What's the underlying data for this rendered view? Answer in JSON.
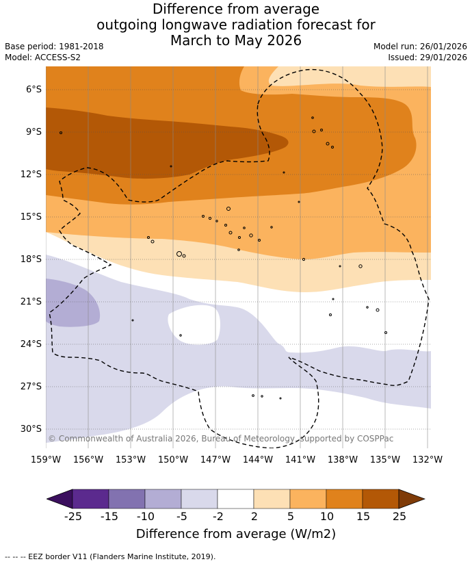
{
  "header": {
    "title_line1": "Difference from average",
    "title_line2": "outgoing longwave radiation forecast for",
    "title_line3": "March to May 2026",
    "base_period": "Base period: 1981-2018",
    "model": "Model: ACCESS-S2",
    "model_run": "Model run: 26/01/2026",
    "issued": "Issued: 29/01/2026"
  },
  "map": {
    "copyright": "© Commonwealth of Australia 2026, Bureau of Meteorology, supported by COSPPac",
    "lat_labels": [
      "6°S",
      "9°S",
      "12°S",
      "15°S",
      "18°S",
      "21°S",
      "24°S",
      "27°S",
      "30°S"
    ],
    "lon_labels": [
      "159°W",
      "156°W",
      "153°W",
      "150°W",
      "147°W",
      "144°W",
      "141°W",
      "138°W",
      "135°W",
      "132°W"
    ]
  },
  "colorbar": {
    "title": "Difference from average (W/m2)",
    "tick_labels": [
      "-25",
      "-15",
      "-10",
      "-5",
      "-2",
      "2",
      "5",
      "10",
      "15",
      "25"
    ],
    "colors": {
      "below_min": "#3b0f5e",
      "c1": "#5b2a8e",
      "c2": "#8272b0",
      "c3": "#b3add4",
      "c4": "#d9d9eb",
      "c5": "#ffffff",
      "c6": "#fde0b5",
      "c7": "#fbb35e",
      "c8": "#e0821c",
      "c9": "#b35806",
      "above_max": "#7f3b08"
    }
  },
  "footer": {
    "eez_note": "--  --  -- EEZ border V11 (Flanders Marine Institute, 2019)."
  }
}
